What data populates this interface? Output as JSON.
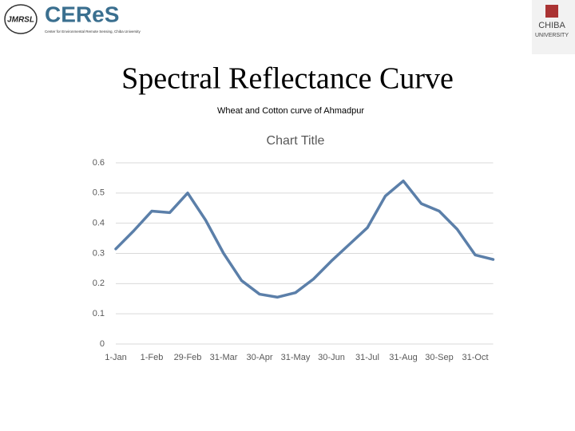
{
  "slide": {
    "title": "Spectral Reflectance Curve",
    "subtitle": "Wheat and Cotton curve of Ahmadpur",
    "logos": {
      "left_mark": "JMRSL",
      "left_name": "CEReS",
      "left_caption": "Center for Environmental Remote Sensing, Chiba University",
      "right_name_1": "CHIBA",
      "right_name_2": "UNIVERSITY"
    }
  },
  "chart_data": {
    "type": "line",
    "title": "Chart Title",
    "categories": [
      "1-Jan",
      null,
      "1-Feb",
      null,
      "29-Feb",
      null,
      "31-Mar",
      null,
      "30-Apr",
      null,
      "31-May",
      null,
      "30-Jun",
      null,
      "31-Jul",
      null,
      "31-Aug",
      null,
      "30-Sep",
      null,
      "31-Oct",
      null
    ],
    "series": [
      {
        "color": "#5b7fa9",
        "values": [
          0.315,
          0.375,
          0.44,
          0.435,
          0.5,
          0.41,
          0.3,
          0.21,
          0.165,
          0.155,
          0.17,
          0.215,
          0.275,
          0.33,
          0.385,
          0.49,
          0.54,
          0.465,
          0.44,
          0.38,
          0.295,
          0.28
        ]
      }
    ],
    "ylim": [
      0,
      0.6
    ],
    "yticks": [
      0,
      0.1,
      0.2,
      0.3,
      0.4,
      0.5,
      0.6
    ],
    "grid": true
  }
}
